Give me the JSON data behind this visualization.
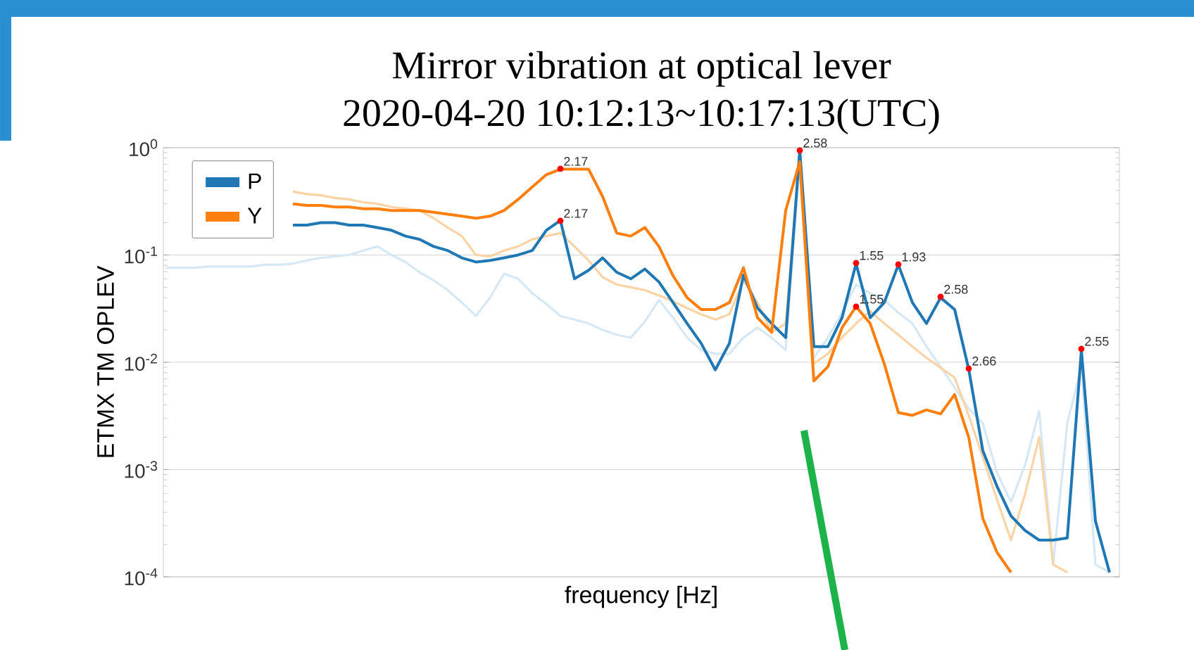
{
  "chart_data": {
    "type": "line",
    "title": "Mirror vibration at optical lever",
    "subtitle": "2020-04-20 10:12:13~10:17:13(UTC)",
    "xlabel": "frequency [Hz]",
    "ylabel": "ETMX TM OPLEV",
    "log": "y",
    "grid": "y",
    "legend": "top left",
    "tick_labels": "y",
    "categories": [
      null,
      null,
      null,
      null,
      null,
      null,
      null,
      null,
      null,
      null,
      null,
      null,
      null,
      null,
      null,
      null,
      null,
      null,
      null,
      null,
      null,
      null,
      null,
      null,
      null,
      null,
      null,
      null,
      null,
      null,
      null,
      null,
      null,
      null,
      null,
      null,
      null,
      null,
      null,
      null,
      null,
      null,
      null,
      null,
      null,
      null,
      null,
      null,
      null,
      null,
      null,
      null,
      null,
      null,
      null,
      null,
      null,
      null,
      null,
      null,
      null,
      null,
      null,
      null,
      null,
      null,
      null,
      null
    ],
    "ylim": [
      0.0001,
      1
    ],
    "yticks": [
      {
        "value": 0.0001,
        "label": "10$^{-4}$"
      },
      {
        "value": 0.001,
        "label": "10$^{-3}$"
      },
      {
        "value": 0.01,
        "label": "10$^{-2}$"
      },
      {
        "value": 0.1,
        "label": "10$^{-1}$"
      },
      {
        "value": 1,
        "label": "10$^{0}$"
      }
    ],
    "series": [
      {
        "color": "#d6e8f3",
        "values": [
          0.076,
          0.076,
          0.076,
          0.078,
          0.078,
          0.078,
          0.078,
          0.081,
          0.081,
          0.083,
          0.089,
          0.094,
          0.097,
          0.1,
          0.11,
          0.12,
          0.1,
          0.086,
          0.069,
          0.058,
          0.047,
          0.036,
          0.027,
          0.04,
          0.067,
          0.06,
          0.044,
          0.035,
          0.027,
          0.025,
          0.023,
          0.02,
          0.018,
          0.017,
          0.024,
          0.038,
          0.026,
          0.017,
          0.013,
          0.012,
          0.012,
          0.017,
          0.021,
          0.017,
          0.013,
          0.74,
          0.011,
          0.017,
          0.029,
          0.053,
          0.044,
          0.038,
          0.029,
          0.023,
          0.014,
          0.0091,
          0.0058,
          0.0037,
          0.0027,
          0.00094,
          0.0005,
          0.0011,
          0.0035,
          0.00013,
          0.0027,
          0.0091,
          0.00013,
          0.00011
        ]
      },
      {
        "color": "#fbd3a5",
        "values": [
          null,
          null,
          null,
          null,
          null,
          null,
          null,
          null,
          null,
          0.39,
          0.37,
          0.36,
          0.34,
          0.33,
          0.31,
          0.3,
          0.28,
          0.27,
          0.26,
          0.22,
          0.18,
          0.15,
          0.1,
          0.097,
          0.11,
          0.12,
          0.14,
          0.15,
          0.16,
          0.12,
          0.089,
          0.062,
          0.053,
          0.05,
          0.047,
          0.042,
          0.037,
          0.032,
          0.028,
          0.025,
          0.028,
          0.058,
          0.036,
          0.019,
          0.023,
          0.86,
          0.0097,
          0.012,
          0.017,
          0.023,
          0.03,
          0.023,
          0.018,
          0.014,
          0.011,
          0.0089,
          0.0072,
          0.0032,
          0.0013,
          0.00053,
          0.00022,
          0.00059,
          0.002,
          0.00013,
          0.00011,
          null,
          null,
          null
        ]
      },
      {
        "name": "P",
        "color": "#1f77b4",
        "values": [
          null,
          null,
          null,
          null,
          null,
          null,
          null,
          null,
          null,
          0.19,
          0.19,
          0.2,
          0.2,
          0.19,
          0.19,
          0.18,
          0.17,
          0.15,
          0.14,
          0.12,
          0.11,
          0.094,
          0.086,
          0.089,
          0.094,
          0.1,
          0.11,
          0.17,
          0.21,
          0.06,
          0.072,
          0.094,
          0.069,
          0.06,
          0.074,
          0.056,
          0.036,
          0.023,
          0.015,
          0.0085,
          0.015,
          0.065,
          0.032,
          0.023,
          0.017,
          0.95,
          0.014,
          0.014,
          0.026,
          0.083,
          0.026,
          0.036,
          0.081,
          0.036,
          0.023,
          0.04,
          0.031,
          0.0086,
          0.0015,
          0.0007,
          0.00037,
          0.00027,
          0.00022,
          0.00022,
          0.00023,
          0.013,
          0.00033,
          0.00011
        ]
      },
      {
        "name": "Y",
        "color": "#ff7f0e",
        "values": [
          null,
          null,
          null,
          null,
          null,
          null,
          null,
          null,
          null,
          0.3,
          0.29,
          0.29,
          0.28,
          0.28,
          0.27,
          0.27,
          0.26,
          0.26,
          0.26,
          0.25,
          0.24,
          0.23,
          0.22,
          0.23,
          0.26,
          0.33,
          0.43,
          0.56,
          0.63,
          0.63,
          0.63,
          0.35,
          0.16,
          0.15,
          0.18,
          0.12,
          0.064,
          0.04,
          0.031,
          0.031,
          0.036,
          0.076,
          0.026,
          0.019,
          0.26,
          0.74,
          0.0067,
          0.0091,
          0.021,
          0.033,
          0.023,
          0.0097,
          0.0034,
          0.0032,
          0.0036,
          0.0033,
          0.005,
          0.002,
          0.00035,
          0.00017,
          0.00011,
          null,
          null,
          null,
          null,
          null,
          null,
          null
        ]
      }
    ],
    "annotations": [
      "2.17",
      "2.17",
      "2.58",
      "1.55",
      "1.93",
      "1.55",
      "2.58",
      "2.66",
      "2.55"
    ]
  }
}
